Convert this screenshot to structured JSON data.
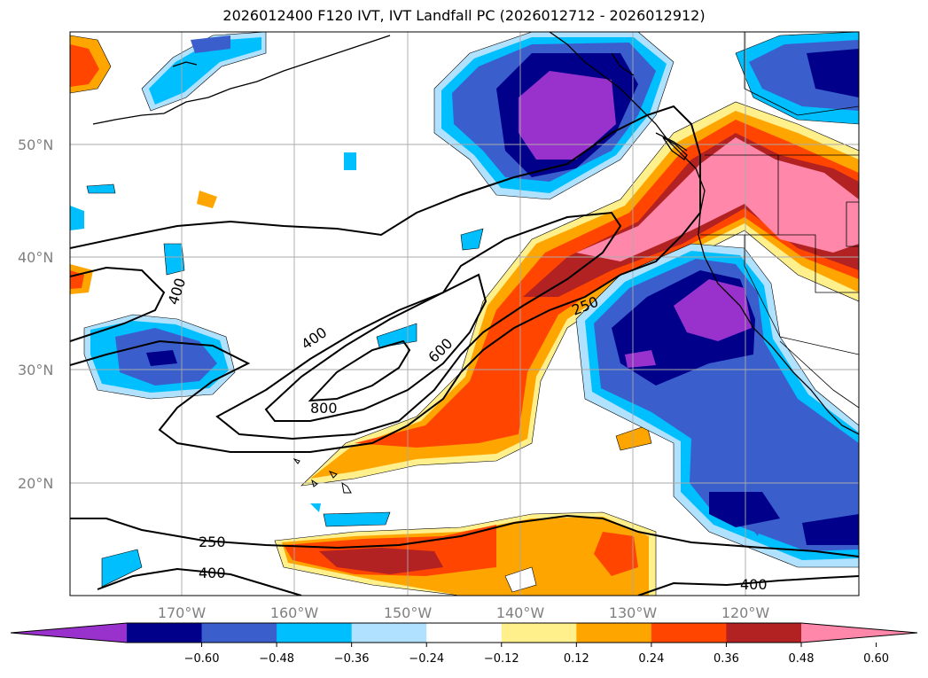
{
  "title": "2026012400 F120 IVT, IVT Landfall PC (2026012712 - 2026012912)",
  "lat_labels": [
    "50°N",
    "40°N",
    "30°N",
    "20°N"
  ],
  "lon_labels": [
    "170°W",
    "160°W",
    "150°W",
    "140°W",
    "130°W",
    "120°W"
  ],
  "contour_labels": [
    "400",
    "400",
    "600",
    "800",
    "250",
    "250",
    "400",
    "400"
  ],
  "colorbar": {
    "ticks": [
      "−0.60",
      "−0.48",
      "−0.36",
      "−0.24",
      "−0.12",
      "0.12",
      "0.24",
      "0.36",
      "0.48",
      "0.60"
    ],
    "colors": [
      "#9932cc",
      "#00008b",
      "#3a5fcd",
      "#00bfff",
      "#b0e2ff",
      "#ffffff",
      "#fff08c",
      "#ffa500",
      "#ff4500",
      "#b22222",
      "#ff88aa"
    ]
  },
  "colors": {
    "gridline": "#aaaaaa",
    "coast": "#000000",
    "contour": "#000000",
    "axis_label": "#808080"
  }
}
